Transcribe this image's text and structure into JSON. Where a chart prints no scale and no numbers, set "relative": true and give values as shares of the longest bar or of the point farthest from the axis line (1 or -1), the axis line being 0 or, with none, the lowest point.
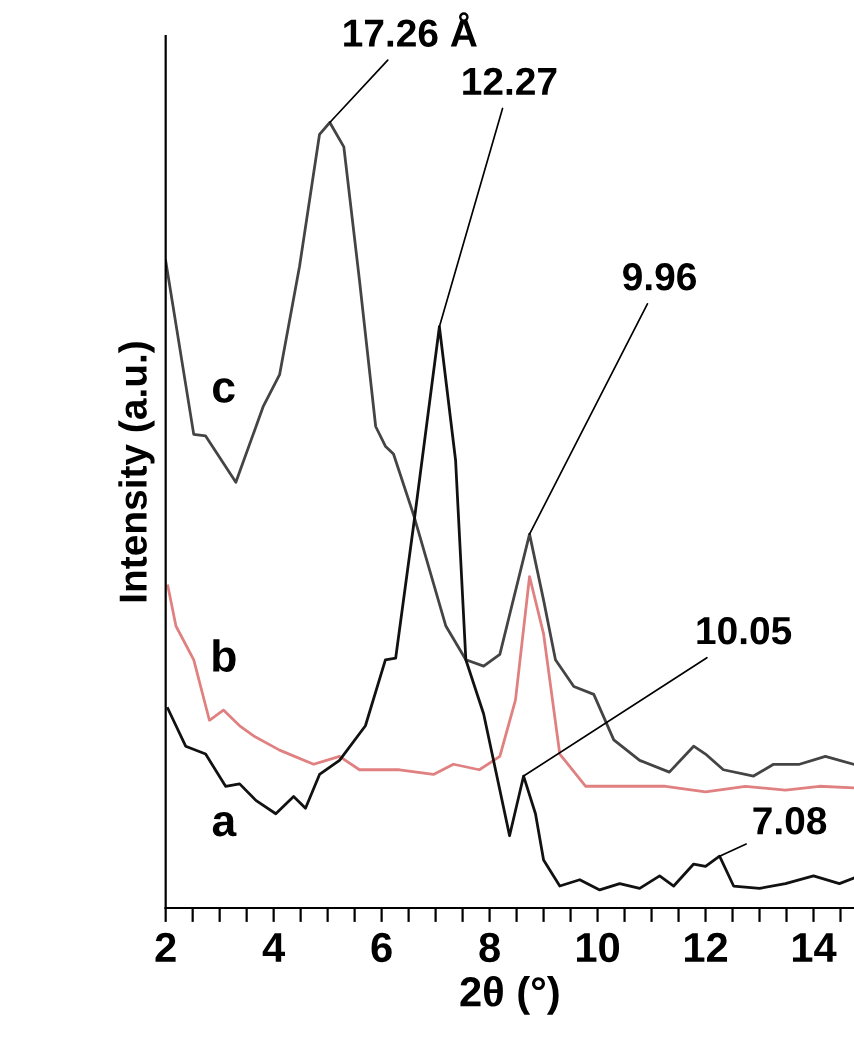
{
  "chart_data": {
    "type": "line",
    "relative": true,
    "xlabel": "2θ (°)",
    "ylabel": "Intensity (a.u.)",
    "xlim": [
      2,
      14.75
    ],
    "xticks": [
      2,
      {
        "value": 2.5,
        "label": null
      },
      {
        "value": 3,
        "label": null
      },
      {
        "value": 3.5,
        "label": null
      },
      4,
      {
        "value": 4.5,
        "label": null
      },
      {
        "value": 5,
        "label": null
      },
      {
        "value": 5.5,
        "label": null
      },
      6,
      {
        "value": 6.5,
        "label": null
      },
      {
        "value": 7,
        "label": null
      },
      {
        "value": 7.5,
        "label": null
      },
      8,
      {
        "value": 8.5,
        "label": null
      },
      {
        "value": 9,
        "label": null
      },
      {
        "value": 9.5,
        "label": null
      },
      10,
      {
        "value": 10.5,
        "label": null
      },
      {
        "value": 11,
        "label": null
      },
      {
        "value": 11.5,
        "label": null
      },
      12,
      {
        "value": 12.5,
        "label": null
      },
      {
        "value": 13,
        "label": null
      },
      {
        "value": 13.5,
        "label": null
      },
      14,
      {
        "value": 14.5,
        "label": null
      }
    ],
    "grid": false,
    "legend": false,
    "marker": "none",
    "line_style": "solid",
    "series": [
      {
        "name": "c",
        "color": "#444444",
        "x": [
          2.0,
          2.52,
          2.74,
          3.3,
          3.81,
          4.11,
          4.48,
          4.85,
          5.04,
          5.3,
          5.59,
          5.89,
          6.07,
          6.22,
          6.59,
          7.19,
          7.56,
          7.89,
          8.19,
          8.74,
          9.0,
          9.22,
          9.56,
          9.93,
          10.3,
          10.78,
          11.33,
          11.78,
          12.0,
          12.33,
          12.89,
          13.26,
          13.74,
          14.22,
          14.74
        ],
        "values": [
          0.824,
          0.603,
          0.601,
          0.542,
          0.639,
          0.679,
          0.817,
          0.985,
          1.0,
          0.969,
          0.799,
          0.613,
          0.588,
          0.578,
          0.501,
          0.359,
          0.316,
          0.308,
          0.323,
          0.476,
          0.392,
          0.316,
          0.282,
          0.272,
          0.214,
          0.188,
          0.173,
          0.206,
          0.196,
          0.176,
          0.168,
          0.183,
          0.183,
          0.193,
          0.183
        ]
      },
      {
        "name": "b",
        "color": "#e08080",
        "x": [
          2.04,
          2.19,
          2.52,
          2.81,
          3.07,
          3.37,
          3.63,
          4.11,
          4.74,
          5.22,
          5.59,
          6.33,
          6.96,
          7.33,
          7.81,
          8.19,
          8.48,
          8.74,
          9.0,
          9.3,
          9.78,
          10.52,
          11.26,
          12.0,
          12.74,
          13.48,
          14.11,
          14.74
        ],
        "values": [
          0.41,
          0.359,
          0.316,
          0.239,
          0.252,
          0.232,
          0.219,
          0.201,
          0.183,
          0.193,
          0.176,
          0.176,
          0.17,
          0.183,
          0.176,
          0.193,
          0.265,
          0.422,
          0.349,
          0.196,
          0.155,
          0.155,
          0.155,
          0.148,
          0.155,
          0.15,
          0.155,
          0.153
        ]
      },
      {
        "name": "a",
        "color": "#111111",
        "x": [
          2.04,
          2.37,
          2.74,
          3.11,
          3.37,
          3.67,
          4.04,
          4.37,
          4.59,
          4.85,
          5.22,
          5.7,
          6.07,
          6.26,
          6.59,
          7.07,
          7.37,
          7.56,
          7.89,
          8.37,
          8.63,
          8.85,
          9.0,
          9.3,
          9.67,
          10.04,
          10.41,
          10.78,
          11.15,
          11.41,
          11.78,
          12.0,
          12.26,
          12.52,
          13.0,
          13.48,
          14.0,
          14.48,
          14.74
        ],
        "values": [
          0.254,
          0.206,
          0.196,
          0.155,
          0.158,
          0.137,
          0.12,
          0.142,
          0.127,
          0.17,
          0.188,
          0.232,
          0.316,
          0.318,
          0.486,
          0.74,
          0.57,
          0.316,
          0.247,
          0.092,
          0.168,
          0.12,
          0.061,
          0.028,
          0.036,
          0.023,
          0.031,
          0.025,
          0.041,
          0.028,
          0.056,
          0.053,
          0.066,
          0.028,
          0.025,
          0.031,
          0.041,
          0.031,
          0.038
        ]
      }
    ],
    "annotations": [
      {
        "text": "17.26 Å",
        "x": 5.04,
        "y": 1.0
      },
      {
        "text": "12.27",
        "x": 7.07,
        "y": 0.74
      },
      {
        "text": "9.96",
        "x": 8.74,
        "y": 0.476
      },
      {
        "text": "10.05",
        "x": 8.63,
        "y": 0.168
      },
      {
        "text": "7.08",
        "x": 12.26,
        "y": 0.066
      }
    ]
  }
}
